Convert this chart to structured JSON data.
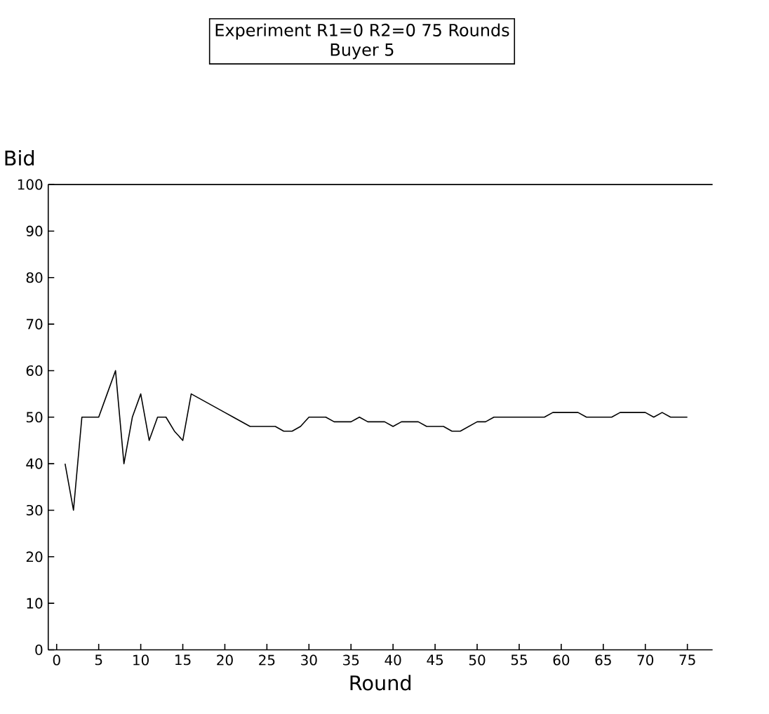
{
  "chart_data": {
    "type": "line",
    "title": "Experiment R1=0 R2=0 75 Rounds",
    "subtitle": "Buyer 5",
    "xlabel": "Round",
    "ylabel": "Bid",
    "x": [
      1,
      2,
      3,
      4,
      5,
      6,
      7,
      8,
      9,
      10,
      11,
      12,
      13,
      14,
      15,
      16,
      17,
      18,
      19,
      20,
      21,
      22,
      23,
      24,
      25,
      26,
      27,
      28,
      29,
      30,
      31,
      32,
      33,
      34,
      35,
      36,
      37,
      38,
      39,
      40,
      41,
      42,
      43,
      44,
      45,
      46,
      47,
      48,
      49,
      50,
      51,
      52,
      53,
      54,
      55,
      56,
      57,
      58,
      59,
      60,
      61,
      62,
      63,
      64,
      65,
      66,
      67,
      68,
      69,
      70,
      71,
      72,
      73,
      74,
      75
    ],
    "values": [
      40,
      30,
      50,
      50,
      50,
      55,
      60,
      40,
      50,
      55,
      45,
      50,
      50,
      47,
      45,
      55,
      54,
      53,
      52,
      51,
      50,
      49,
      48,
      48,
      48,
      48,
      47,
      47,
      48,
      50,
      50,
      50,
      49,
      49,
      49,
      50,
      49,
      49,
      49,
      48,
      49,
      49,
      49,
      48,
      48,
      48,
      47,
      47,
      48,
      49,
      49,
      50,
      50,
      50,
      50,
      50,
      50,
      50,
      51,
      51,
      51,
      51,
      50,
      50,
      50,
      50,
      51,
      51,
      51,
      51,
      50,
      51,
      50,
      50,
      50
    ],
    "color": "#000000",
    "xlim": [
      -1,
      78
    ],
    "ylim": [
      0,
      100
    ],
    "xticks": [
      0,
      5,
      10,
      15,
      20,
      25,
      30,
      35,
      40,
      45,
      50,
      55,
      60,
      65,
      70,
      75
    ],
    "yticks": [
      0,
      10,
      20,
      30,
      40,
      50,
      60,
      70,
      80,
      90,
      100
    ],
    "grid": false,
    "marker": "none",
    "line_style": "solid"
  }
}
